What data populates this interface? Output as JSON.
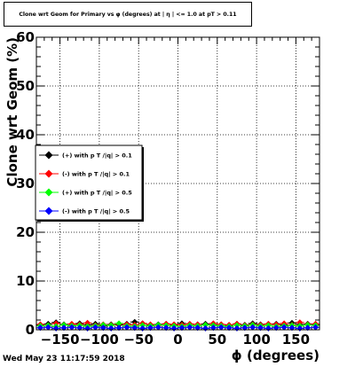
{
  "title": "Clone wrt Geom for Primary vs φ (degrees) at | η | <= 1.0 at pT > 0.11",
  "timestamp": "Wed May 23 11:17:59 2018",
  "chart_data": {
    "type": "scatter",
    "title": "Clone wrt Geom for Primary vs φ (degrees) at | η | <= 1.0 at pT > 0.11",
    "xlabel": "ϕ (degrees)",
    "ylabel": "Clone wrt Geom (%)",
    "xlim": [
      -180,
      180
    ],
    "ylim": [
      0,
      60
    ],
    "xticks": [
      -150,
      -100,
      -50,
      0,
      50,
      100,
      150
    ],
    "yticks": [
      0,
      10,
      20,
      30,
      40,
      50,
      60
    ],
    "grid": true,
    "legend_position": "middle-left",
    "series": [
      {
        "name": "(+) with p T /|q| > 0.1",
        "color": "#000000",
        "x": [
          -175,
          -165,
          -155,
          -145,
          -135,
          -125,
          -115,
          -105,
          -95,
          -85,
          -75,
          -65,
          -55,
          -45,
          -35,
          -25,
          -15,
          -5,
          5,
          15,
          25,
          35,
          45,
          55,
          65,
          75,
          85,
          95,
          105,
          115,
          125,
          135,
          145,
          155,
          165,
          175
        ],
        "y": [
          1.0,
          1.2,
          1.5,
          1.1,
          0.9,
          1.3,
          1.0,
          1.2,
          0.8,
          1.1,
          1.0,
          1.2,
          1.6,
          1.3,
          0.9,
          1.1,
          1.2,
          1.0,
          1.3,
          0.9,
          1.1,
          1.2,
          1.0,
          1.1,
          0.9,
          1.2,
          1.0,
          1.3,
          1.1,
          0.9,
          1.2,
          1.0,
          1.4,
          1.1,
          1.2,
          1.0
        ]
      },
      {
        "name": "(-) with p T /|q| > 0.1",
        "color": "#ff0000",
        "x": [
          -175,
          -165,
          -155,
          -145,
          -135,
          -125,
          -115,
          -105,
          -95,
          -85,
          -75,
          -65,
          -55,
          -45,
          -35,
          -25,
          -15,
          -5,
          5,
          15,
          25,
          35,
          45,
          55,
          65,
          75,
          85,
          95,
          105,
          115,
          125,
          135,
          145,
          155,
          165,
          175
        ],
        "y": [
          1.1,
          0.9,
          1.3,
          1.0,
          1.2,
          1.1,
          1.4,
          0.9,
          1.1,
          1.0,
          1.2,
          1.1,
          1.0,
          1.3,
          1.1,
          0.9,
          1.2,
          1.1,
          1.0,
          1.2,
          1.1,
          1.0,
          1.3,
          1.1,
          1.0,
          1.2,
          0.9,
          1.1,
          1.0,
          1.2,
          1.1,
          1.3,
          1.0,
          1.5,
          1.1,
          1.2
        ]
      },
      {
        "name": "(+) with p T /|q| > 0.5",
        "color": "#00ff00",
        "x": [
          -175,
          -165,
          -155,
          -145,
          -135,
          -125,
          -115,
          -105,
          -95,
          -85,
          -75,
          -65,
          -55,
          -45,
          -35,
          -25,
          -15,
          -5,
          5,
          15,
          25,
          35,
          45,
          55,
          65,
          75,
          85,
          95,
          105,
          115,
          125,
          135,
          145,
          155,
          165,
          175
        ],
        "y": [
          0.8,
          0.9,
          0.7,
          1.0,
          0.8,
          0.9,
          0.7,
          0.8,
          1.0,
          0.9,
          1.3,
          0.8,
          0.7,
          0.9,
          0.8,
          1.0,
          0.9,
          0.8,
          0.7,
          0.9,
          0.8,
          1.0,
          0.9,
          0.8,
          0.7,
          0.9,
          0.8,
          1.0,
          0.8,
          0.9,
          0.7,
          0.8,
          0.9,
          0.8,
          1.0,
          0.9
        ]
      },
      {
        "name": "(-) with p T /|q| > 0.5",
        "color": "#0000ff",
        "x": [
          -175,
          -165,
          -155,
          -145,
          -135,
          -125,
          -115,
          -105,
          -95,
          -85,
          -75,
          -65,
          -55,
          -45,
          -35,
          -25,
          -15,
          -5,
          5,
          15,
          25,
          35,
          45,
          55,
          65,
          75,
          85,
          95,
          105,
          115,
          125,
          135,
          145,
          155,
          165,
          175
        ],
        "y": [
          0.4,
          0.5,
          0.3,
          0.4,
          0.5,
          0.4,
          0.3,
          0.5,
          0.4,
          0.3,
          0.4,
          0.5,
          0.4,
          0.3,
          0.4,
          0.5,
          0.4,
          0.3,
          0.4,
          0.5,
          0.4,
          0.3,
          0.4,
          0.5,
          0.4,
          0.3,
          0.4,
          0.5,
          0.4,
          0.3,
          0.4,
          0.5,
          0.4,
          0.3,
          0.4,
          0.5
        ]
      }
    ]
  }
}
